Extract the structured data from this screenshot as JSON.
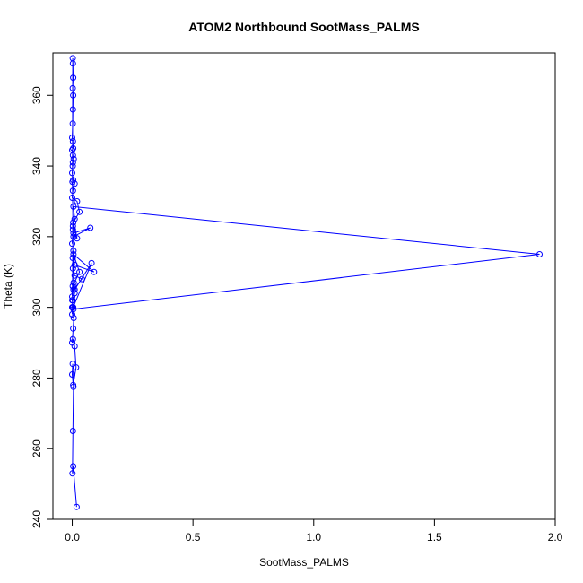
{
  "chart_data": {
    "type": "line",
    "title": "ATOM2 Northbound SootMass_PALMS",
    "xlabel": "SootMass_PALMS",
    "ylabel": "Theta (K)",
    "xlim": [
      -0.08,
      2.0
    ],
    "ylim": [
      240,
      372
    ],
    "xticks": [
      0,
      0.5,
      1.0,
      1.5,
      2.0
    ],
    "xtick_labels": [
      "0.0",
      "0.5",
      "1.0",
      "1.5",
      "2.0"
    ],
    "yticks": [
      240,
      260,
      280,
      300,
      320,
      340,
      360
    ],
    "ytick_labels": [
      "240",
      "260",
      "280",
      "300",
      "320",
      "340",
      "360"
    ],
    "grid": false,
    "legend": "none",
    "color": "#0000ff",
    "marker": "open-circle",
    "series": [
      {
        "x": [
          0.018,
          0.004,
          0.001,
          0.003,
          0.005,
          0.0,
          0.002,
          0.004,
          0.016,
          0.01,
          0.003,
          0.0,
          0.004,
          0.006,
          0.0,
          0.002,
          0.01,
          0.005,
          0.04,
          0.01,
          0.003,
          0.0,
          0.002,
          0.03,
          0.005,
          0.09,
          0.01,
          0.005,
          0.0,
          0.004,
          0.08,
          0.01,
          0.006,
          0.0,
          0.005,
          1.935,
          0.005,
          0.01,
          0.003,
          0.0,
          0.005,
          0.075,
          0.005,
          0.02,
          0.004,
          0.03,
          0.02,
          0.0,
          0.003,
          0.01,
          0.004,
          0.0,
          0.002,
          0.003,
          0.006,
          0.003,
          0.0,
          0.004,
          0.003,
          0.0,
          0.002,
          0.003,
          0.004,
          0.002,
          0.004,
          0.003,
          0.002,
          0.001,
          0.003,
          0.002,
          0.001
        ],
        "y": [
          243.5,
          255.0,
          253.0,
          265.0,
          277.5,
          281.0,
          284.0,
          278.0,
          283.0,
          289.0,
          291.0,
          290.0,
          294.0,
          297.0,
          300.0,
          302.0,
          304.0,
          305.0,
          308.0,
          309.0,
          311.0,
          303.0,
          306.0,
          310.0,
          315.0,
          310.0,
          312.0,
          316.0,
          298.0,
          300.0,
          312.5,
          305.0,
          307.0,
          302.0,
          299.5,
          315.0,
          328.5,
          325.0,
          322.0,
          318.0,
          320.0,
          322.5,
          321.0,
          319.5,
          324.0,
          327.0,
          330.0,
          331.0,
          333.0,
          335.0,
          336.0,
          338.0,
          340.0,
          341.0,
          342.0,
          343.0,
          344.5,
          345.0,
          347.0,
          348.0,
          352.0,
          356.0,
          360.0,
          362.0,
          365.0,
          369.0,
          370.5,
          335.5,
          323.0,
          314.0,
          300.0
        ]
      }
    ]
  }
}
